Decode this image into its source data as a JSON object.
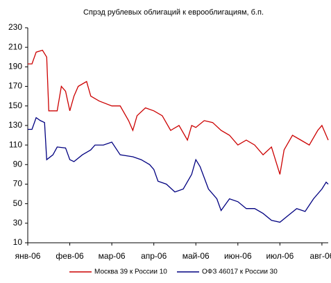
{
  "chart_data": {
    "type": "line",
    "title": "Спрэд рублевых облигаций к еврооблигациям, б.п.",
    "xlim": [
      0,
      7.15
    ],
    "xticks": [
      {
        "value": 0,
        "label": "янв-06"
      },
      {
        "value": 1,
        "label": "фев-06"
      },
      {
        "value": 2,
        "label": "мар-06"
      },
      {
        "value": 3,
        "label": "апр-06"
      },
      {
        "value": 4,
        "label": "май-06"
      },
      {
        "value": 5,
        "label": "июн-06"
      },
      {
        "value": 6,
        "label": "июл-06"
      },
      {
        "value": 7,
        "label": "авг-06"
      }
    ],
    "ylim": [
      10,
      230
    ],
    "yticks": [
      10,
      30,
      50,
      70,
      90,
      110,
      130,
      150,
      170,
      190,
      210,
      230
    ],
    "grid": false,
    "legend": "bottom",
    "series": [
      {
        "name": "Москва 39 к России 10",
        "color": "#cc0000",
        "x": [
          0,
          0.1,
          0.2,
          0.35,
          0.45,
          0.5,
          0.7,
          0.8,
          0.9,
          1.0,
          1.1,
          1.2,
          1.4,
          1.5,
          1.7,
          2.0,
          2.2,
          2.4,
          2.5,
          2.6,
          2.8,
          3.0,
          3.2,
          3.4,
          3.6,
          3.8,
          3.9,
          4.0,
          4.2,
          4.4,
          4.6,
          4.8,
          5.0,
          5.2,
          5.4,
          5.6,
          5.8,
          6.0,
          6.1,
          6.3,
          6.5,
          6.7,
          6.9,
          7.0,
          7.1,
          7.15
        ],
        "values": [
          193,
          193,
          205,
          207,
          200,
          145,
          145,
          170,
          165,
          145,
          160,
          170,
          175,
          160,
          155,
          150,
          150,
          135,
          125,
          140,
          148,
          145,
          140,
          125,
          130,
          115,
          130,
          128,
          135,
          133,
          125,
          120,
          110,
          115,
          110,
          100,
          108,
          80,
          105,
          120,
          115,
          110,
          125,
          130,
          120,
          115
        ]
      },
      {
        "name": "ОФЗ 46017 к России 30",
        "color": "#000080",
        "x": [
          0,
          0.1,
          0.2,
          0.3,
          0.4,
          0.45,
          0.6,
          0.7,
          0.9,
          1.0,
          1.1,
          1.3,
          1.5,
          1.6,
          1.8,
          2.0,
          2.2,
          2.5,
          2.7,
          2.9,
          3.0,
          3.1,
          3.3,
          3.5,
          3.7,
          3.9,
          4.0,
          4.1,
          4.3,
          4.5,
          4.6,
          4.8,
          5.0,
          5.2,
          5.4,
          5.6,
          5.8,
          6.0,
          6.2,
          6.4,
          6.6,
          6.8,
          7.0,
          7.1,
          7.15
        ],
        "values": [
          126,
          126,
          138,
          135,
          133,
          95,
          100,
          108,
          107,
          95,
          93,
          100,
          105,
          110,
          110,
          113,
          100,
          98,
          95,
          90,
          85,
          73,
          70,
          62,
          65,
          80,
          95,
          88,
          65,
          55,
          43,
          55,
          52,
          45,
          45,
          40,
          33,
          31,
          38,
          45,
          42,
          55,
          65,
          72,
          70
        ]
      }
    ]
  }
}
